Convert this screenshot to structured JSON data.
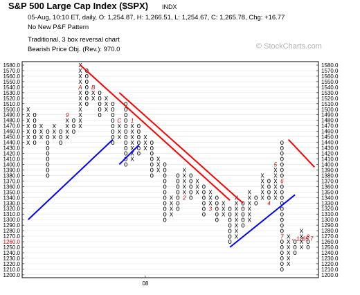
{
  "header": {
    "title": "S&P 500 Large Cap Index ($SPX)",
    "exchange": "INDX",
    "quote_line": "05-Aug, 10:10 ET, daily, O: 1,254.87, H: 1,266.51, L: 1,254.67, C: 1,265.78, Chg: +16.77",
    "pattern_line": "No New P&F Pattern",
    "method_line": "Traditional, 3 box reversal chart",
    "objective_line": "Bearish Price Obj. (Rev.): 970.0"
  },
  "watermark": "© StockCharts.com",
  "chart_data": {
    "type": "point-and-figure",
    "box_size": 10,
    "reversal": 3,
    "y_ticks": [
      1580,
      1570,
      1560,
      1550,
      1540,
      1530,
      1520,
      1510,
      1500,
      1490,
      1480,
      1470,
      1460,
      1450,
      1440,
      1430,
      1420,
      1410,
      1400,
      1390,
      1380,
      1370,
      1360,
      1350,
      1340,
      1330,
      1320,
      1310,
      1300,
      1290,
      1280,
      1270,
      1260,
      1250,
      1240,
      1230,
      1220,
      1210,
      1200
    ],
    "y_tick_labels": [
      "1580.0",
      "1570.0",
      "1560.0",
      "1550.0",
      "1540.0",
      "1530.0",
      "1520.0",
      "1510.0",
      "1500.0",
      "1490.0",
      "1480.0",
      "1470.0",
      "1460.0",
      "1450.0",
      "1440.0",
      "1430.0",
      "1420.0",
      "1410.0",
      "1400.0",
      "1390.0",
      "1380.0",
      "1370.0",
      "1360.0",
      "1350.0",
      "1340.0",
      "1330.0",
      "1320.0",
      "1310.0",
      "1300.0",
      "1290.0",
      "1280.0",
      "1270.0",
      "1260.0",
      "1250.0",
      "1240.0",
      "1230.0",
      "1220.0",
      "1210.0",
      "1200.0"
    ],
    "highlight_left_label": "1260.0",
    "current_price_label": "1265.7",
    "current_price": 1265.7,
    "ylim": [
      1200,
      1580
    ],
    "x_label": "08",
    "x_label_column": 18,
    "columns": [
      {
        "t": "X",
        "lo": 1440,
        "hi": 1500
      },
      {
        "t": "O",
        "lo": 1440,
        "hi": 1490
      },
      {
        "t": "X",
        "lo": 1450,
        "hi": 1470
      },
      {
        "t": "O",
        "lo": 1380,
        "hi": 1460
      },
      {
        "t": "X",
        "lo": 1450,
        "hi": 1470
      },
      {
        "t": "O",
        "lo": 1440,
        "hi": 1460
      },
      {
        "t": "X",
        "lo": 1450,
        "hi": 1490,
        "marks": {
          "1490": "9"
        }
      },
      {
        "t": "O",
        "lo": 1460,
        "hi": 1480
      },
      {
        "t": "X",
        "lo": 1470,
        "hi": 1580,
        "marks": {
          "1540": "A"
        }
      },
      {
        "t": "O",
        "lo": 1510,
        "hi": 1570
      },
      {
        "t": "X",
        "lo": 1520,
        "hi": 1540,
        "marks": {
          "1540": "B"
        }
      },
      {
        "t": "O",
        "lo": 1490,
        "hi": 1530
      },
      {
        "t": "X",
        "lo": 1500,
        "hi": 1520
      },
      {
        "t": "O",
        "lo": 1440,
        "hi": 1510
      },
      {
        "t": "X",
        "lo": 1450,
        "hi": 1480,
        "marks": {
          "1480": "C"
        }
      },
      {
        "t": "O",
        "lo": 1400,
        "hi": 1510
      },
      {
        "t": "X",
        "lo": 1410,
        "hi": 1480,
        "marks": {
          "1480": "1"
        }
      },
      {
        "t": "O",
        "lo": 1420,
        "hi": 1470
      },
      {
        "t": "X",
        "lo": 1430,
        "hi": 1450
      },
      {
        "t": "O",
        "lo": 1380,
        "hi": 1440
      },
      {
        "t": "X",
        "lo": 1390,
        "hi": 1410
      },
      {
        "t": "O",
        "lo": 1300,
        "hi": 1400
      },
      {
        "t": "X",
        "lo": 1310,
        "hi": 1340
      },
      {
        "t": "O",
        "lo": 1320,
        "hi": 1380
      },
      {
        "t": "X",
        "lo": 1340,
        "hi": 1390,
        "marks": {
          "1340": "2"
        }
      },
      {
        "t": "O",
        "lo": 1340,
        "hi": 1380
      },
      {
        "t": "X",
        "lo": 1350,
        "hi": 1370
      },
      {
        "t": "O",
        "lo": 1310,
        "hi": 1360
      },
      {
        "t": "X",
        "lo": 1320,
        "hi": 1350,
        "marks": {
          "1320": "3"
        }
      },
      {
        "t": "O",
        "lo": 1300,
        "hi": 1340
      },
      {
        "t": "X",
        "lo": 1310,
        "hi": 1330
      },
      {
        "t": "O",
        "lo": 1260,
        "hi": 1320
      },
      {
        "t": "X",
        "lo": 1270,
        "hi": 1340
      },
      {
        "t": "O",
        "lo": 1290,
        "hi": 1330
      },
      {
        "t": "X",
        "lo": 1300,
        "hi": 1350
      },
      {
        "t": "O",
        "lo": 1330,
        "hi": 1340
      },
      {
        "t": "X",
        "lo": 1340,
        "hi": 1380
      },
      {
        "t": "O",
        "lo": 1330,
        "hi": 1370,
        "marks": {
          "1330": "4"
        }
      },
      {
        "t": "X",
        "lo": 1340,
        "hi": 1400,
        "marks": {
          "1400": "5"
        }
      },
      {
        "t": "O",
        "lo": 1210,
        "hi": 1440,
        "marks": {
          "1370": "6",
          "1270": "7"
        }
      },
      {
        "t": "X",
        "lo": 1220,
        "hi": 1270
      },
      {
        "t": "O",
        "lo": 1240,
        "hi": 1260
      },
      {
        "t": "X",
        "lo": 1250,
        "hi": 1280
      },
      {
        "t": "O",
        "lo": 1250,
        "hi": 1270,
        "marks": {
          "1270": "8"
        }
      }
    ],
    "trendlines": [
      {
        "color": "#0000ff",
        "from": {
          "col": 0,
          "price": 1300
        },
        "to": {
          "col": 13,
          "price": 1445
        }
      },
      {
        "color": "#0000ff",
        "from": {
          "col": 14,
          "price": 1400
        },
        "to": {
          "col": 17,
          "price": 1435
        }
      },
      {
        "color": "#0000ff",
        "from": {
          "col": 31,
          "price": 1250
        },
        "to": {
          "col": 41,
          "price": 1345
        }
      },
      {
        "color": "#ff0000",
        "from": {
          "col": 8,
          "price": 1580
        },
        "to": {
          "col": 31,
          "price": 1335
        }
      },
      {
        "color": "#ff0000",
        "from": {
          "col": 14,
          "price": 1530
        },
        "to": {
          "col": 33,
          "price": 1330
        }
      },
      {
        "color": "#ff0000",
        "from": {
          "col": 40,
          "price": 1445
        },
        "to": {
          "col": 44,
          "price": 1395
        }
      }
    ]
  }
}
